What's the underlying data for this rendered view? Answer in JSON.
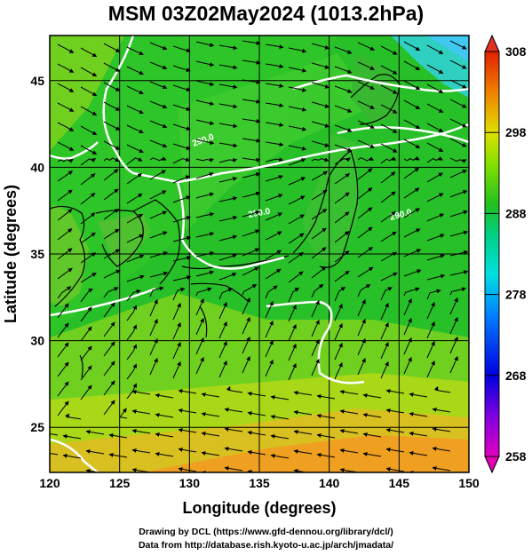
{
  "title": "MSM 03Z02May2024 (1013.2hPa)",
  "chart_data": {
    "type": "heatmap",
    "title": "MSM 03Z02May2024 (1013.2hPa)",
    "xlabel": "Longitude (degrees)",
    "ylabel": "Latitude  (degrees)",
    "xlim": [
      120,
      150
    ],
    "ylim": [
      22.4,
      47.6
    ],
    "x_ticks": [
      120,
      125,
      130,
      135,
      140,
      145,
      150
    ],
    "y_ticks": [
      25,
      30,
      35,
      40,
      45
    ],
    "grid": true,
    "colorbar": {
      "min": 258,
      "max": 308,
      "ticks": [
        258,
        268,
        278,
        288,
        298,
        308
      ],
      "extend": "both"
    },
    "contour_labels": [
      "290.0",
      "290.0",
      "290.0"
    ],
    "overlays": [
      "temperature field",
      "wind streamlines",
      "coastlines",
      "290 K contours"
    ]
  },
  "credits": {
    "line1": "Drawing by DCL (https://www.gfd-dennou.org/library/dcl/)",
    "line2": "Data from http://database.rish.kyoto-u.ac.jp/arch/jmadata/"
  },
  "colors": {
    "cold": "#00c0e0",
    "mid": "#20c020",
    "warm": "#f0a020",
    "contour": "#ffffff",
    "grid": "#000000"
  }
}
